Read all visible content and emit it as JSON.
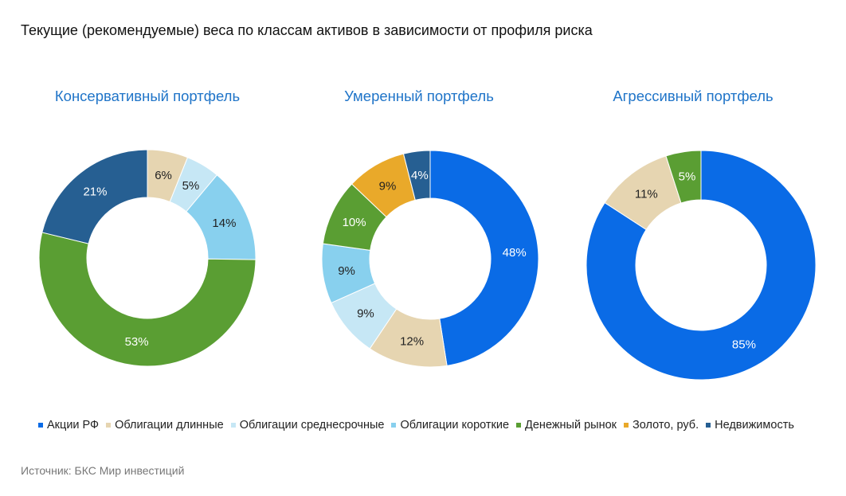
{
  "title": "Текущие (рекомендуемые) веса по классам активов в зависимости от профиля риска",
  "source": "Источник: БКС Мир инвестиций",
  "legend": [
    {
      "name": "Акции РФ",
      "color": "#0a6be6"
    },
    {
      "name": "Облигации длинные",
      "color": "#e6d5b1"
    },
    {
      "name": "Облигации среднесрочные",
      "color": "#c6e7f5"
    },
    {
      "name": "Облигации короткие",
      "color": "#88d0ee"
    },
    {
      "name": "Денежный рынок",
      "color": "#5a9e33"
    },
    {
      "name": "Золото, руб.",
      "color": "#e9a92a"
    },
    {
      "name": "Недвижимость",
      "color": "#265f92"
    }
  ],
  "chart_data": [
    {
      "type": "pie",
      "variant": "donut",
      "title": "Консервативный портфель",
      "slices": [
        {
          "category": "Облигации длинные",
          "value": 6,
          "label": "6%"
        },
        {
          "category": "Облигации среднесрочные",
          "value": 5,
          "label": "5%"
        },
        {
          "category": "Облигации короткие",
          "value": 14,
          "label": "14%"
        },
        {
          "category": "Денежный рынок",
          "value": 53,
          "label": "53%"
        },
        {
          "category": "Недвижимость",
          "value": 21,
          "label": "21%"
        }
      ]
    },
    {
      "type": "pie",
      "variant": "donut",
      "title": "Умеренный портфель",
      "slices": [
        {
          "category": "Акции РФ",
          "value": 48,
          "label": "48%"
        },
        {
          "category": "Облигации длинные",
          "value": 12,
          "label": "12%"
        },
        {
          "category": "Облигации среднесрочные",
          "value": 9,
          "label": "9%"
        },
        {
          "category": "Облигации короткие",
          "value": 9,
          "label": "9%"
        },
        {
          "category": "Денежный рынок",
          "value": 10,
          "label": "10%"
        },
        {
          "category": "Золото, руб.",
          "value": 9,
          "label": "9%"
        },
        {
          "category": "Недвижимость",
          "value": 4,
          "label": "4%"
        }
      ]
    },
    {
      "type": "pie",
      "variant": "donut",
      "title": "Агрессивный портфель",
      "slices": [
        {
          "category": "Акции РФ",
          "value": 85,
          "label": "85%"
        },
        {
          "category": "Облигации длинные",
          "value": 11,
          "label": "11%"
        },
        {
          "category": "Денежный рынок",
          "value": 5,
          "label": "5%"
        }
      ]
    }
  ]
}
